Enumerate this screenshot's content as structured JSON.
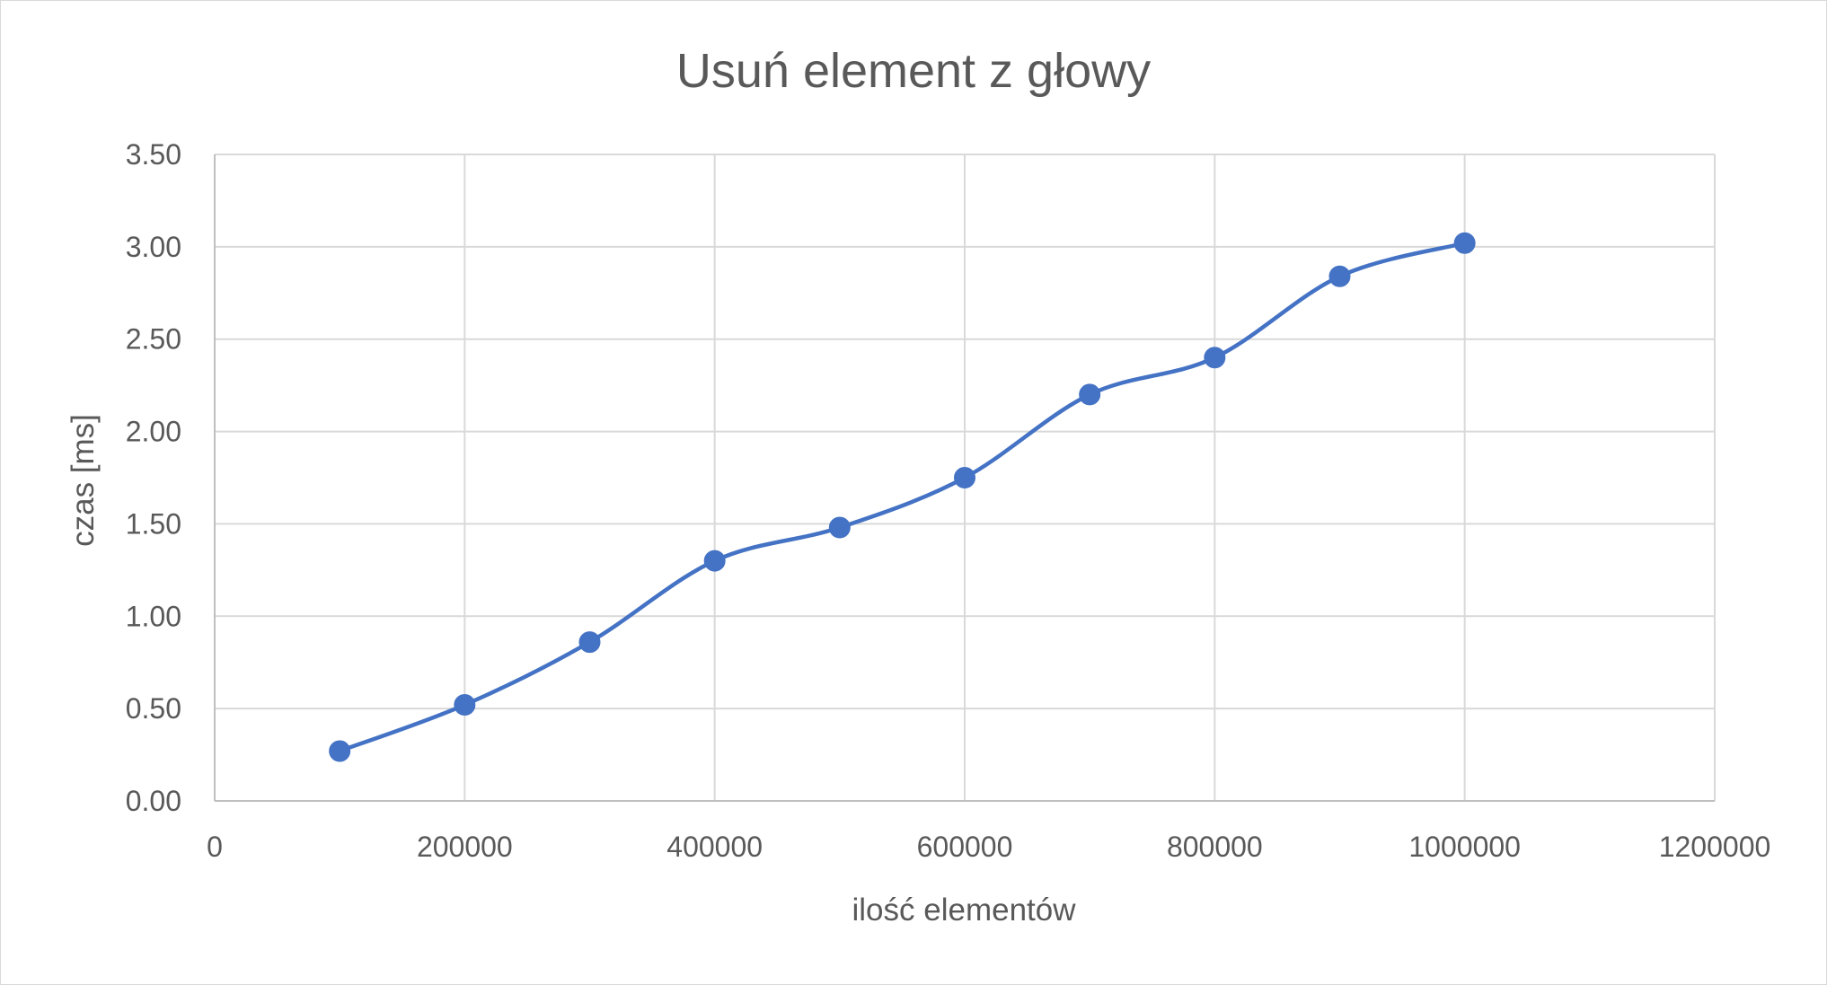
{
  "chart_data": {
    "type": "scatter",
    "title": "Usuń element z głowy",
    "xlabel": "ilość elementów",
    "ylabel": "czas [ms]",
    "xlim": [
      0,
      1200000
    ],
    "ylim": [
      0,
      3.5
    ],
    "x_ticks": [
      "0",
      "200000",
      "400000",
      "600000",
      "800000",
      "1000000",
      "1200000"
    ],
    "y_ticks": [
      "0.00",
      "0.50",
      "1.00",
      "1.50",
      "2.00",
      "2.50",
      "3.00",
      "3.50"
    ],
    "grid": true,
    "smooth_line": true,
    "markers": true,
    "legend": "none",
    "series": [
      {
        "color": "#4472c4",
        "x": [
          100000,
          200000,
          300000,
          400000,
          500000,
          600000,
          700000,
          800000,
          900000,
          1000000
        ],
        "y": [
          0.27,
          0.52,
          0.86,
          1.3,
          1.48,
          1.75,
          2.2,
          2.4,
          2.84,
          3.02
        ]
      }
    ]
  }
}
